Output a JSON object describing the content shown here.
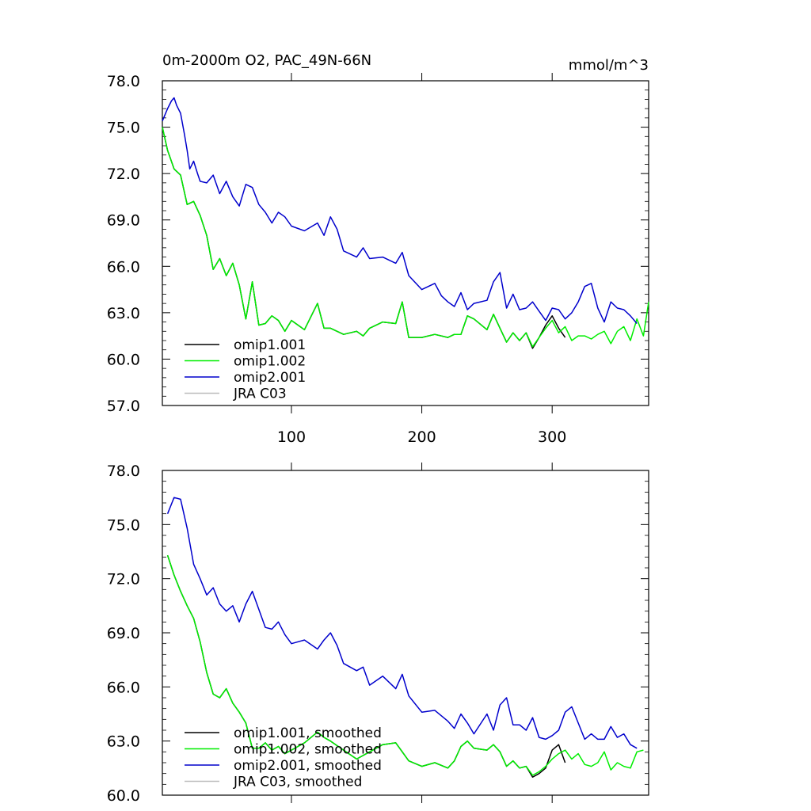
{
  "chart_data": [
    {
      "type": "line",
      "title": "0m-2000m O2, PAC_49N-66N",
      "units": "mmol/m^3",
      "xlim": [
        1,
        374
      ],
      "ylim": [
        57.0,
        78.0
      ],
      "xticks": [
        100,
        200,
        300
      ],
      "xtick_labels": [
        "100",
        "200",
        "300"
      ],
      "yticks": [
        57.0,
        60.0,
        63.0,
        66.0,
        69.0,
        72.0,
        75.0,
        78.0
      ],
      "ytick_labels": [
        "57.0",
        "60.0",
        "63.0",
        "66.0",
        "69.0",
        "72.0",
        "75.0",
        "78.0"
      ],
      "legend_location": "lower-left",
      "series": [
        {
          "name": "omip1.001",
          "color": "#000000",
          "x": [
            1,
            5,
            10,
            15,
            20,
            25,
            30,
            35,
            40,
            45,
            50,
            55,
            60,
            65,
            70,
            75,
            80,
            85,
            90,
            95,
            100,
            110,
            120,
            125,
            130,
            140,
            150,
            155,
            160,
            170,
            180,
            185,
            190,
            200,
            210,
            220,
            225,
            230,
            235,
            240,
            250,
            255,
            260,
            265,
            270,
            275,
            280,
            285,
            290,
            295,
            300,
            305,
            310
          ],
          "y": [
            75.0,
            73.5,
            72.3,
            71.9,
            70.0,
            70.2,
            69.3,
            68.0,
            65.8,
            66.5,
            65.4,
            66.2,
            64.8,
            62.6,
            65.0,
            62.2,
            62.3,
            62.8,
            62.5,
            61.8,
            62.5,
            61.9,
            63.6,
            62.0,
            62.0,
            61.6,
            61.8,
            61.5,
            62.0,
            62.4,
            62.3,
            63.7,
            61.4,
            61.4,
            61.6,
            61.4,
            61.6,
            61.6,
            62.8,
            62.6,
            61.9,
            62.9,
            62.0,
            61.1,
            61.7,
            61.2,
            61.7,
            60.7,
            61.4,
            62.2,
            62.8,
            62.0,
            61.4
          ]
        },
        {
          "name": "omip1.002",
          "color": "#00ee00",
          "x": [
            1,
            5,
            10,
            15,
            20,
            25,
            30,
            35,
            40,
            45,
            50,
            55,
            60,
            65,
            70,
            75,
            80,
            85,
            90,
            95,
            100,
            110,
            120,
            125,
            130,
            140,
            150,
            155,
            160,
            170,
            180,
            185,
            190,
            200,
            210,
            220,
            225,
            230,
            235,
            240,
            250,
            255,
            260,
            265,
            270,
            275,
            280,
            285,
            290,
            295,
            300,
            305,
            310,
            315,
            320,
            325,
            330,
            335,
            340,
            345,
            350,
            355,
            360,
            365,
            370,
            374
          ],
          "y": [
            75.0,
            73.5,
            72.3,
            71.9,
            70.0,
            70.2,
            69.3,
            68.0,
            65.8,
            66.5,
            65.4,
            66.2,
            64.8,
            62.6,
            65.0,
            62.2,
            62.3,
            62.8,
            62.5,
            61.8,
            62.5,
            61.9,
            63.6,
            62.0,
            62.0,
            61.6,
            61.8,
            61.5,
            62.0,
            62.4,
            62.3,
            63.7,
            61.4,
            61.4,
            61.6,
            61.4,
            61.6,
            61.6,
            62.8,
            62.6,
            61.9,
            62.9,
            62.0,
            61.1,
            61.7,
            61.2,
            61.7,
            60.8,
            61.4,
            62.0,
            62.5,
            61.7,
            62.1,
            61.2,
            61.5,
            61.5,
            61.3,
            61.6,
            61.8,
            61.0,
            61.8,
            62.1,
            61.2,
            62.6,
            61.5,
            63.7
          ]
        },
        {
          "name": "omip2.001",
          "color": "#0000cc",
          "x": [
            1,
            5,
            8,
            10,
            12,
            15,
            18,
            20,
            22,
            25,
            28,
            30,
            35,
            40,
            45,
            50,
            55,
            60,
            65,
            70,
            75,
            80,
            85,
            90,
            95,
            100,
            110,
            120,
            125,
            130,
            135,
            140,
            150,
            155,
            160,
            170,
            180,
            185,
            190,
            200,
            210,
            215,
            220,
            225,
            230,
            235,
            240,
            250,
            255,
            260,
            265,
            270,
            275,
            280,
            285,
            290,
            295,
            300,
            305,
            310,
            315,
            320,
            325,
            330,
            335,
            340,
            345,
            350,
            355,
            360,
            365
          ],
          "y": [
            75.4,
            76.2,
            76.7,
            76.9,
            76.4,
            75.9,
            74.5,
            73.5,
            72.3,
            72.8,
            72.0,
            71.5,
            71.4,
            71.9,
            70.7,
            71.5,
            70.5,
            69.9,
            71.3,
            71.1,
            70.0,
            69.5,
            68.8,
            69.5,
            69.2,
            68.6,
            68.3,
            68.8,
            68.0,
            69.2,
            68.4,
            67.0,
            66.6,
            67.2,
            66.5,
            66.6,
            66.2,
            66.9,
            65.4,
            64.5,
            64.9,
            64.1,
            63.7,
            63.4,
            64.3,
            63.2,
            63.6,
            63.8,
            65.0,
            65.6,
            63.3,
            64.2,
            63.2,
            63.3,
            63.7,
            63.1,
            62.5,
            63.3,
            63.2,
            62.6,
            63.0,
            63.7,
            64.7,
            64.9,
            63.3,
            62.4,
            63.7,
            63.3,
            63.2,
            62.8,
            62.3
          ]
        },
        {
          "name": "JRA C03",
          "color": "#bbbbbb",
          "x": [],
          "y": []
        }
      ]
    },
    {
      "type": "line",
      "title": "",
      "xlim": [
        1,
        374
      ],
      "ylim": [
        60.0,
        78.0
      ],
      "xticks": [
        100,
        200,
        300
      ],
      "yticks": [
        60.0,
        63.0,
        66.0,
        69.0,
        72.0,
        75.0,
        78.0
      ],
      "ytick_labels": [
        "60.0",
        "63.0",
        "66.0",
        "69.0",
        "72.0",
        "75.0",
        "78.0"
      ],
      "legend_location": "lower-left",
      "series": [
        {
          "name": "omip1.001, smoothed",
          "color": "#000000",
          "x": [
            5,
            10,
            15,
            20,
            25,
            30,
            35,
            40,
            45,
            50,
            55,
            60,
            65,
            70,
            75,
            80,
            85,
            90,
            95,
            100,
            110,
            120,
            125,
            130,
            140,
            150,
            160,
            170,
            180,
            190,
            200,
            210,
            220,
            225,
            230,
            235,
            240,
            250,
            255,
            260,
            265,
            270,
            275,
            280,
            285,
            290,
            295,
            300,
            305,
            310
          ],
          "y": [
            73.3,
            72.2,
            71.3,
            70.5,
            69.8,
            68.5,
            66.8,
            65.6,
            65.4,
            65.9,
            65.1,
            64.6,
            64.0,
            62.6,
            62.6,
            62.9,
            62.5,
            62.7,
            62.3,
            62.5,
            62.9,
            63.5,
            63.2,
            63.0,
            62.5,
            62.0,
            62.4,
            62.8,
            62.9,
            61.9,
            61.6,
            61.8,
            61.5,
            61.9,
            62.7,
            63.0,
            62.6,
            62.5,
            62.8,
            62.4,
            61.6,
            61.9,
            61.5,
            61.6,
            61.0,
            61.2,
            61.5,
            62.5,
            62.8,
            61.8
          ]
        },
        {
          "name": "omip1.002, smoothed",
          "color": "#00ee00",
          "x": [
            5,
            10,
            15,
            20,
            25,
            30,
            35,
            40,
            45,
            50,
            55,
            60,
            65,
            70,
            75,
            80,
            85,
            90,
            95,
            100,
            110,
            120,
            125,
            130,
            140,
            150,
            160,
            170,
            180,
            190,
            200,
            210,
            220,
            225,
            230,
            235,
            240,
            250,
            255,
            260,
            265,
            270,
            275,
            280,
            285,
            290,
            295,
            300,
            305,
            310,
            315,
            320,
            325,
            330,
            335,
            340,
            345,
            350,
            355,
            360,
            365,
            370
          ],
          "y": [
            73.3,
            72.2,
            71.3,
            70.5,
            69.8,
            68.5,
            66.8,
            65.6,
            65.4,
            65.9,
            65.1,
            64.6,
            64.0,
            62.6,
            62.6,
            62.9,
            62.5,
            62.7,
            62.3,
            62.5,
            62.9,
            63.5,
            63.2,
            63.0,
            62.5,
            62.0,
            62.4,
            62.8,
            62.9,
            61.9,
            61.6,
            61.8,
            61.5,
            61.9,
            62.7,
            63.0,
            62.6,
            62.5,
            62.8,
            62.4,
            61.6,
            61.9,
            61.5,
            61.6,
            61.1,
            61.3,
            61.6,
            62.0,
            62.3,
            62.5,
            62.0,
            62.3,
            61.7,
            61.6,
            61.8,
            62.4,
            61.4,
            61.8,
            61.6,
            61.5,
            62.4,
            62.5
          ]
        },
        {
          "name": "omip2.001, smoothed",
          "color": "#0000cc",
          "x": [
            5,
            10,
            15,
            20,
            25,
            30,
            35,
            40,
            45,
            50,
            55,
            60,
            65,
            70,
            75,
            80,
            85,
            90,
            95,
            100,
            110,
            120,
            125,
            130,
            135,
            140,
            150,
            155,
            160,
            170,
            180,
            185,
            190,
            200,
            210,
            220,
            225,
            230,
            235,
            240,
            250,
            255,
            260,
            265,
            270,
            275,
            280,
            285,
            290,
            295,
            300,
            305,
            310,
            315,
            320,
            325,
            330,
            335,
            340,
            345,
            350,
            355,
            360,
            365
          ],
          "y": [
            75.6,
            76.5,
            76.4,
            74.8,
            72.8,
            72.0,
            71.1,
            71.5,
            70.6,
            70.2,
            70.5,
            69.6,
            70.6,
            71.3,
            70.3,
            69.3,
            69.2,
            69.6,
            68.9,
            68.4,
            68.6,
            68.1,
            68.6,
            69.0,
            68.3,
            67.3,
            66.9,
            67.1,
            66.1,
            66.6,
            65.9,
            66.7,
            65.5,
            64.6,
            64.7,
            64.1,
            63.7,
            64.5,
            64.0,
            63.4,
            64.5,
            63.6,
            65.0,
            65.4,
            63.9,
            63.9,
            63.6,
            64.3,
            63.2,
            63.1,
            63.3,
            63.6,
            64.6,
            64.9,
            64.0,
            63.1,
            63.4,
            63.1,
            63.1,
            63.8,
            63.2,
            63.4,
            62.8,
            62.6
          ]
        },
        {
          "name": "JRA C03, smoothed",
          "color": "#bbbbbb",
          "x": [],
          "y": []
        }
      ]
    }
  ]
}
